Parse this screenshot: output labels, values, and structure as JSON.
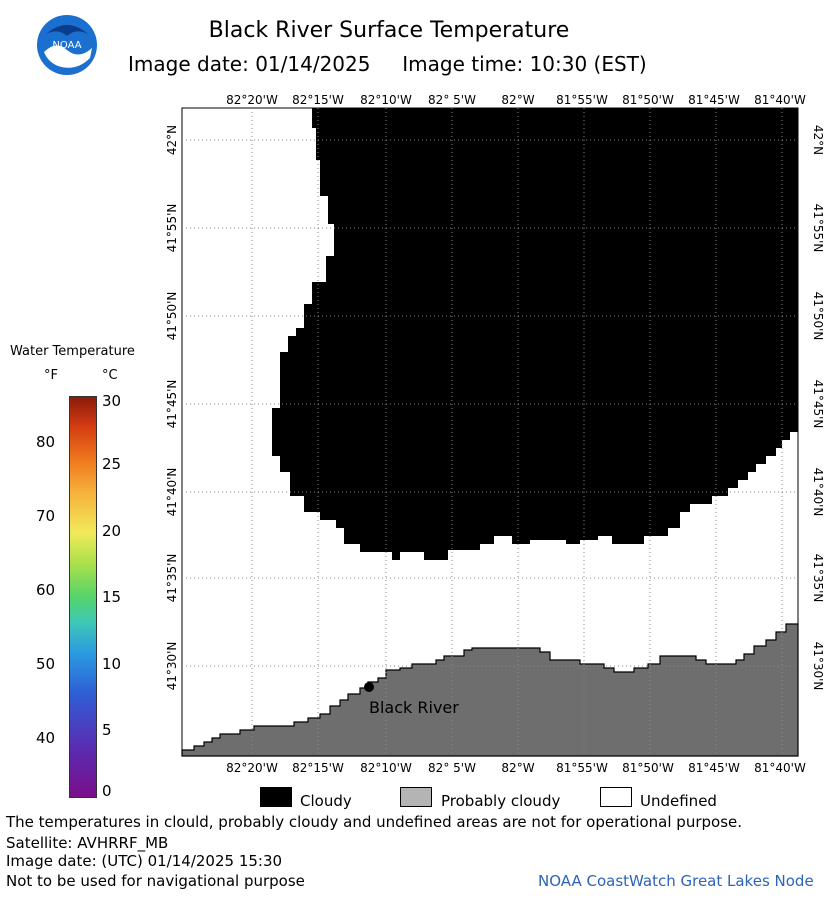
{
  "title": "Black River Surface Temperature",
  "subtitle": {
    "date_label": "Image date:",
    "date": "01/14/2025",
    "time_label": "Image time:",
    "time": "10:30 (EST)"
  },
  "logo": {
    "icon": "noaa-logo",
    "text": "NOAA"
  },
  "map": {
    "lon_labels": [
      "82°20'W",
      "82°15'W",
      "82°10'W",
      "82° 5'W",
      "82°W",
      "81°55'W",
      "81°50'W",
      "81°45'W",
      "81°40'W"
    ],
    "lat_labels": [
      "42°N",
      "41°55'N",
      "41°50'N",
      "41°45'N",
      "41°40'N",
      "41°35'N",
      "41°30'N"
    ],
    "location_label": "Black River",
    "colors": {
      "cloud": "#000000",
      "land": "#6e6e6e",
      "undefined": "#ffffff",
      "grid": "#888888"
    }
  },
  "legend": {
    "title": "Water Temperature",
    "unit_f": "°F",
    "unit_c": "°C",
    "f_ticks": [
      "80",
      "70",
      "60",
      "50",
      "40"
    ],
    "c_ticks": [
      "30",
      "25",
      "20",
      "15",
      "10",
      "5",
      "0"
    ],
    "categories": [
      {
        "label": "Cloudy",
        "color": "#000000"
      },
      {
        "label": "Probably cloudy",
        "color": "#b4b4b4"
      },
      {
        "label": "Undefined",
        "color": "#ffffff"
      }
    ]
  },
  "footer": {
    "note": "The temperatures in clould, probably cloudy and undefined areas are not for operational purpose.",
    "satellite": "Satellite: AVHRRF_MB",
    "image_date_utc": "Image date: (UTC) 01/14/2025  15:30",
    "nav_warning": "Not to be used for navigational purpose",
    "credit": "NOAA CoastWatch Great Lakes Node"
  }
}
